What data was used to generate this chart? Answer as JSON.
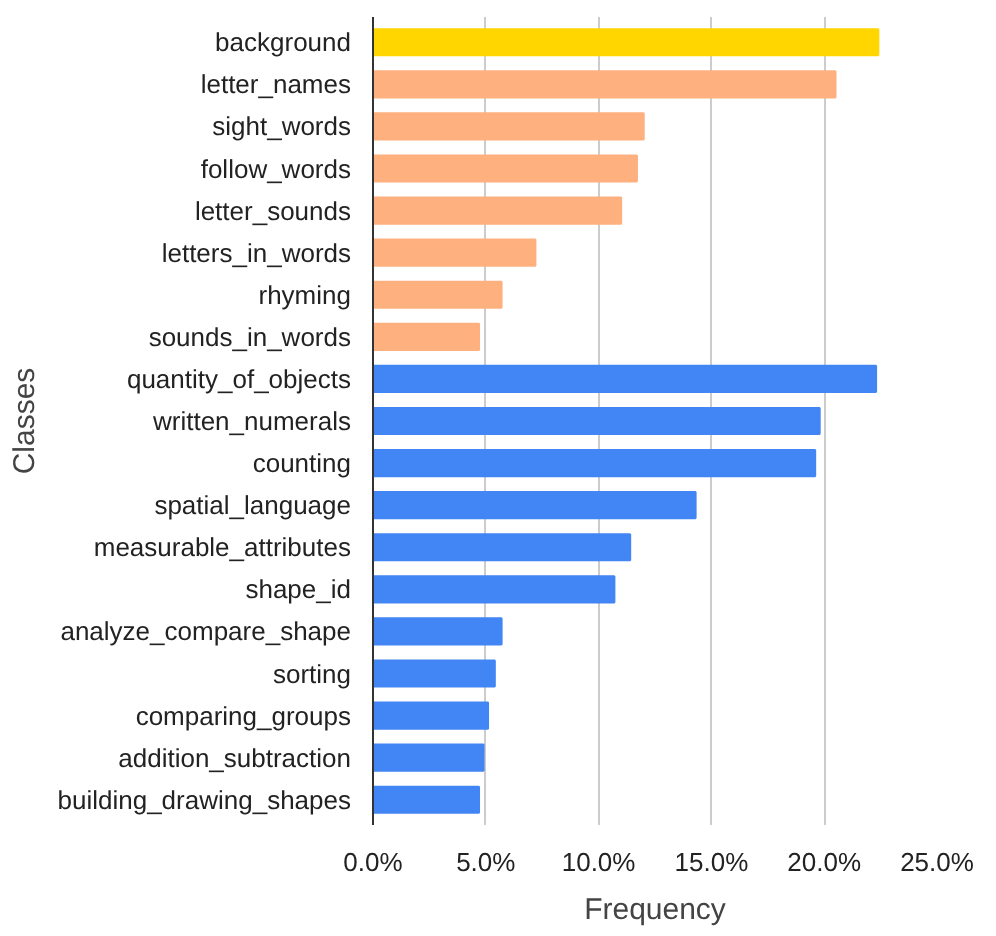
{
  "chart_data": {
    "type": "bar",
    "orientation": "horizontal",
    "xlabel": "Frequency",
    "ylabel": "Classes",
    "categories": [
      "background",
      "letter_names",
      "sight_words",
      "follow_words",
      "letter_sounds",
      "letters_in_words",
      "rhyming",
      "sounds_in_words",
      "quantity_of_objects",
      "written_numerals",
      "counting",
      "spatial_language",
      "measurable_attributes",
      "shape_id",
      "analyze_compare_shape",
      "sorting",
      "comparing_groups",
      "addition_subtraction",
      "building_drawing_shapes"
    ],
    "values": [
      22.4,
      20.5,
      12.0,
      11.7,
      11.0,
      7.2,
      5.7,
      4.7,
      22.3,
      19.8,
      19.6,
      14.3,
      11.4,
      10.7,
      5.7,
      5.4,
      5.1,
      4.9,
      4.7
    ],
    "colors": [
      "#ffd600",
      "#ffb07f",
      "#ffb07f",
      "#ffb07f",
      "#ffb07f",
      "#ffb07f",
      "#ffb07f",
      "#ffb07f",
      "#4285f4",
      "#4285f4",
      "#4285f4",
      "#4285f4",
      "#4285f4",
      "#4285f4",
      "#4285f4",
      "#4285f4",
      "#4285f4",
      "#4285f4",
      "#4285f4"
    ],
    "xlim": [
      0,
      25
    ],
    "xticks": [
      {
        "value": 0,
        "label": "0.0%"
      },
      {
        "value": 5,
        "label": "5.0%"
      },
      {
        "value": 10,
        "label": "10.0%"
      },
      {
        "value": 15,
        "label": "15.0%"
      },
      {
        "value": 20,
        "label": "20.0%"
      },
      {
        "value": 25,
        "label": "25.0%"
      }
    ],
    "grid": "x"
  }
}
